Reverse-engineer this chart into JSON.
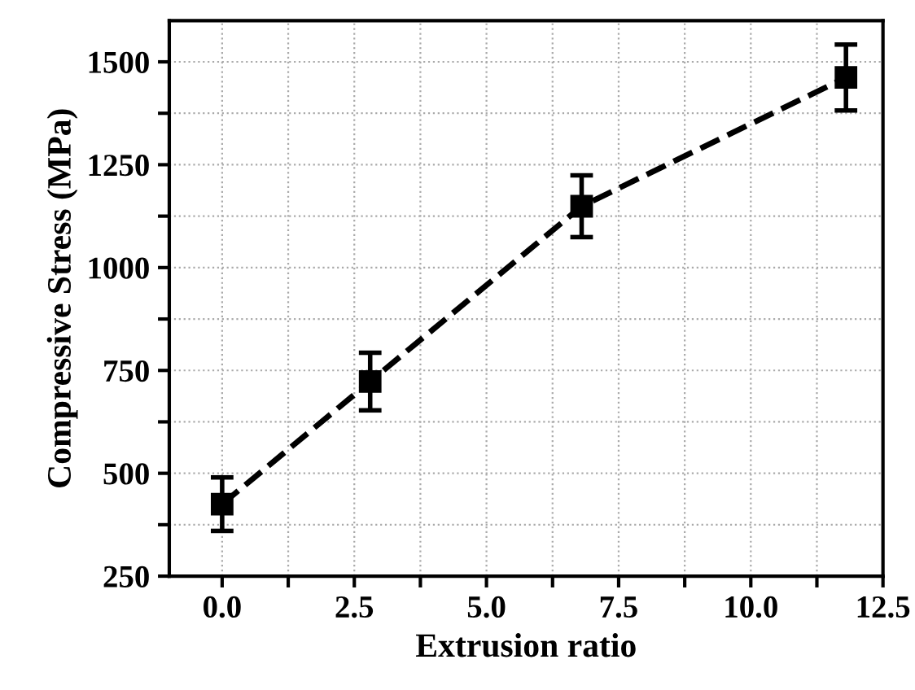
{
  "chart_data": {
    "type": "line",
    "xlabel": "Extrusion ratio",
    "ylabel": "Compressive Stress (MPa)",
    "x": [
      0,
      2.8,
      6.8,
      11.8
    ],
    "series": [
      {
        "color": "#000000",
        "values": [
          425,
          723,
          1149,
          1462
        ],
        "errors": [
          65,
          70,
          75,
          80
        ]
      }
    ],
    "marker": "square",
    "line_style": "dashed",
    "grid": true,
    "xlim": [
      -1,
      12.5
    ],
    "ylim": [
      250,
      1600
    ],
    "xticks": [
      {
        "value": 0,
        "label": "0.0"
      },
      {
        "value": 1.25,
        "label": null
      },
      {
        "value": 2.5,
        "label": "2.5"
      },
      {
        "value": 3.75,
        "label": null
      },
      {
        "value": 5,
        "label": "5.0"
      },
      {
        "value": 6.25,
        "label": null
      },
      {
        "value": 7.5,
        "label": "7.5"
      },
      {
        "value": 8.75,
        "label": null
      },
      {
        "value": 10,
        "label": "10.0"
      },
      {
        "value": 11.25,
        "label": null
      },
      {
        "value": 12.5,
        "label": "12.5"
      }
    ],
    "yticks": [
      250,
      {
        "value": 375,
        "label": null
      },
      500,
      {
        "value": 625,
        "label": null
      },
      750,
      {
        "value": 875,
        "label": null
      },
      1000,
      {
        "value": 1125,
        "label": null
      },
      1250,
      {
        "value": 1375,
        "label": null
      },
      1500
    ]
  }
}
